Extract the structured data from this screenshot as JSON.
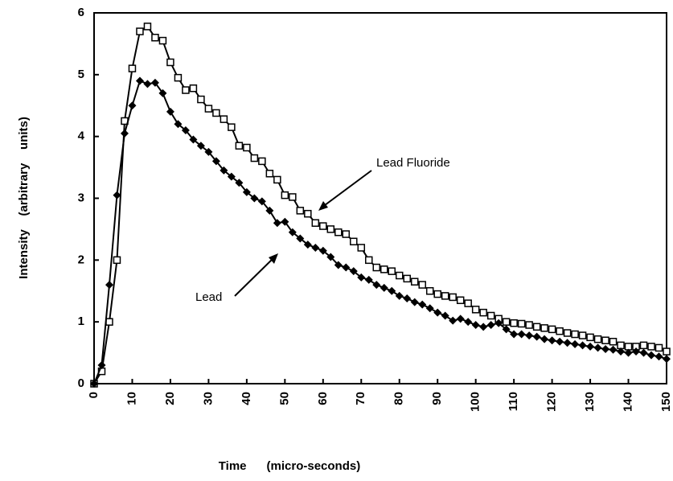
{
  "chart_data": {
    "type": "line",
    "xlabel": "Time      (micro-seconds)",
    "ylabel": "Intensity    (arbitrary    units)",
    "x": [
      0,
      2,
      4,
      6,
      8,
      10,
      12,
      14,
      16,
      18,
      20,
      22,
      24,
      26,
      28,
      30,
      32,
      34,
      36,
      38,
      40,
      42,
      44,
      46,
      48,
      50,
      52,
      54,
      56,
      58,
      60,
      62,
      64,
      66,
      68,
      70,
      72,
      74,
      76,
      78,
      80,
      82,
      84,
      86,
      88,
      90,
      92,
      94,
      96,
      98,
      100,
      102,
      104,
      106,
      108,
      110,
      112,
      114,
      116,
      118,
      120,
      122,
      124,
      126,
      128,
      130,
      132,
      134,
      136,
      138,
      140,
      142,
      144,
      146,
      148,
      150
    ],
    "series": [
      {
        "name": "Lead Fluoride",
        "color": "#000000",
        "marker": "square",
        "values": [
          0,
          0.2,
          1.0,
          2.0,
          4.25,
          5.1,
          5.7,
          5.78,
          5.6,
          5.55,
          5.2,
          4.95,
          4.75,
          4.78,
          4.6,
          4.45,
          4.38,
          4.28,
          4.15,
          3.85,
          3.82,
          3.65,
          3.6,
          3.4,
          3.3,
          3.05,
          3.02,
          2.8,
          2.75,
          2.6,
          2.55,
          2.5,
          2.45,
          2.42,
          2.3,
          2.2,
          2.0,
          1.88,
          1.85,
          1.82,
          1.75,
          1.7,
          1.65,
          1.6,
          1.5,
          1.45,
          1.42,
          1.4,
          1.35,
          1.3,
          1.2,
          1.15,
          1.1,
          1.05,
          1.0,
          0.98,
          0.97,
          0.95,
          0.92,
          0.9,
          0.88,
          0.85,
          0.82,
          0.8,
          0.78,
          0.75,
          0.72,
          0.7,
          0.68,
          0.62,
          0.6,
          0.6,
          0.62,
          0.6,
          0.58,
          0.52
        ]
      },
      {
        "name": "Lead",
        "color": "#000000",
        "marker": "diamond",
        "values": [
          0,
          0.3,
          1.6,
          3.05,
          4.05,
          4.5,
          4.9,
          4.85,
          4.87,
          4.7,
          4.4,
          4.2,
          4.1,
          3.95,
          3.85,
          3.75,
          3.6,
          3.45,
          3.35,
          3.25,
          3.1,
          3.0,
          2.95,
          2.8,
          2.6,
          2.62,
          2.45,
          2.35,
          2.25,
          2.2,
          2.15,
          2.05,
          1.92,
          1.88,
          1.82,
          1.72,
          1.68,
          1.6,
          1.55,
          1.5,
          1.42,
          1.38,
          1.32,
          1.28,
          1.22,
          1.15,
          1.1,
          1.02,
          1.05,
          1.0,
          0.95,
          0.92,
          0.95,
          0.98,
          0.88,
          0.8,
          0.8,
          0.78,
          0.76,
          0.72,
          0.7,
          0.68,
          0.66,
          0.64,
          0.62,
          0.6,
          0.58,
          0.56,
          0.55,
          0.52,
          0.5,
          0.52,
          0.5,
          0.46,
          0.44,
          0.4
        ]
      }
    ],
    "xlim": [
      0,
      150
    ],
    "xticks": [
      0,
      10,
      20,
      30,
      40,
      50,
      60,
      70,
      80,
      90,
      100,
      110,
      120,
      130,
      140,
      150
    ],
    "ylim": [
      0,
      6
    ],
    "yticks": [
      0,
      1,
      2,
      3,
      4,
      5,
      6
    ]
  }
}
